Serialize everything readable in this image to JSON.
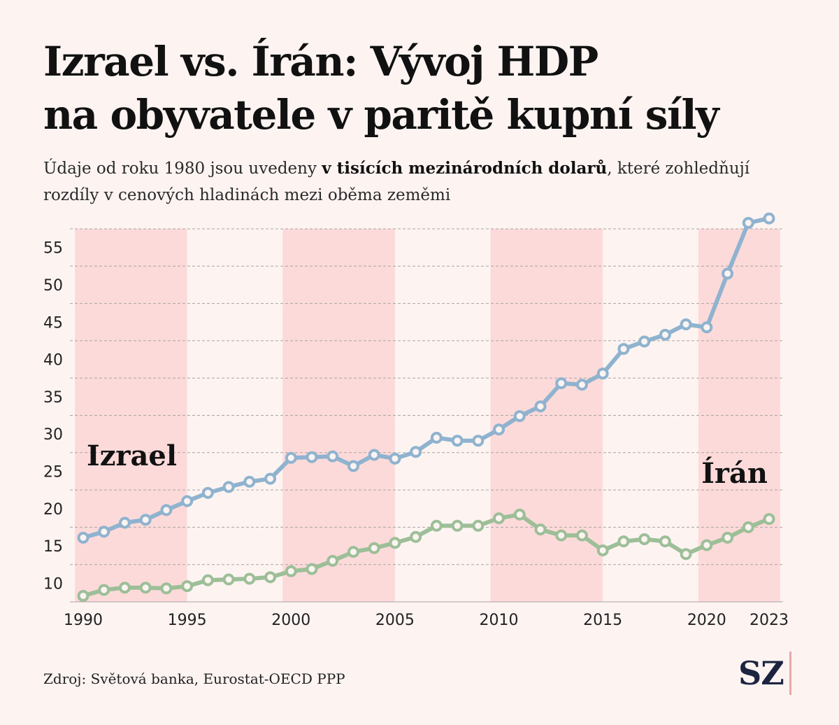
{
  "title_line1": "Izrael vs. Írán: Vývoj HDP",
  "title_line2": "na obyvatele v paritě kupní síly",
  "subtitle": {
    "part1": "Údaje od roku 1980 jsou uvedeny ",
    "bold": "v tisících mezinárodních dolarů",
    "part2": ", které zohledňují rozdíly v cenových hladinách mezi oběma zeměmi"
  },
  "source": "Zdroj: Světová banka, Eurostat-OECD PPP",
  "logo": "SZ",
  "colors": {
    "israel": "#8fb3cf",
    "iran": "#9dbf98",
    "band": "#fddada",
    "background": "#fdf4f2"
  },
  "chart_data": {
    "type": "line",
    "x_ticks": [
      "1990",
      "1995",
      "2000",
      "2005",
      "2010",
      "2015",
      "2020",
      "2023"
    ],
    "y_ticks": [
      10,
      15,
      20,
      25,
      30,
      35,
      40,
      45,
      50,
      55
    ],
    "xlim": [
      1990,
      2023
    ],
    "ylim": [
      7.5,
      57.5
    ],
    "grid": "horizontal-dashed",
    "shaded_periods": [
      [
        1990,
        1995
      ],
      [
        2000,
        2005
      ],
      [
        2010,
        2015
      ],
      [
        2020,
        2023
      ]
    ],
    "x": [
      1990,
      1991,
      1992,
      1993,
      1994,
      1995,
      1996,
      1997,
      1998,
      1999,
      2000,
      2001,
      2002,
      2003,
      2004,
      2005,
      2006,
      2007,
      2008,
      2009,
      2010,
      2011,
      2012,
      2013,
      2014,
      2015,
      2016,
      2017,
      2018,
      2019,
      2020,
      2021,
      2022,
      2023
    ],
    "series": [
      {
        "name": "Izrael",
        "values": [
          16.1,
          16.9,
          18.1,
          18.5,
          19.8,
          21.0,
          22.1,
          22.9,
          23.6,
          24.0,
          26.8,
          26.9,
          27.0,
          25.7,
          27.2,
          26.7,
          27.6,
          29.5,
          29.1,
          29.1,
          30.6,
          32.4,
          33.7,
          36.8,
          36.6,
          38.1,
          41.4,
          42.4,
          43.3,
          44.7,
          44.3,
          51.5,
          58.3,
          58.9
        ]
      },
      {
        "name": "Írán",
        "values": [
          8.3,
          9.1,
          9.4,
          9.4,
          9.3,
          9.6,
          10.4,
          10.5,
          10.6,
          10.8,
          11.6,
          11.9,
          13.0,
          14.2,
          14.7,
          15.4,
          16.2,
          17.7,
          17.7,
          17.7,
          18.7,
          19.2,
          17.2,
          16.4,
          16.4,
          14.4,
          15.6,
          15.9,
          15.6,
          13.9,
          15.1,
          16.1,
          17.5,
          18.6
        ]
      }
    ]
  }
}
